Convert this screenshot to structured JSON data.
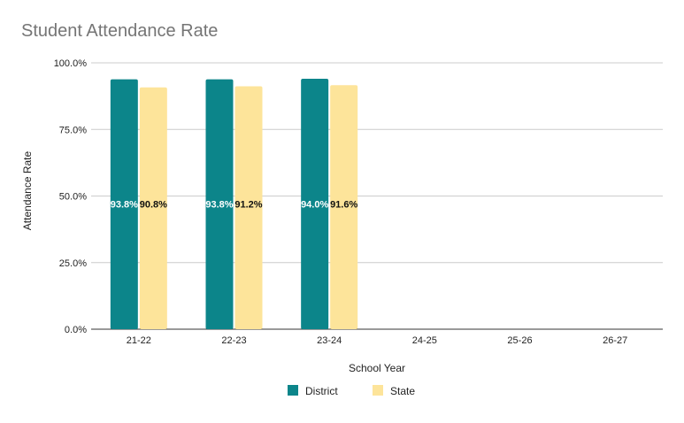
{
  "chart_data": {
    "type": "bar",
    "title": "Student Attendance Rate",
    "xlabel": "School Year",
    "ylabel": "Attendance Rate",
    "categories": [
      "21-22",
      "22-23",
      "23-24",
      "24-25",
      "25-26",
      "26-27"
    ],
    "series": [
      {
        "name": "District",
        "color": "#0c858a",
        "values": [
          93.8,
          93.8,
          94.0,
          null,
          null,
          null
        ],
        "labels": [
          "93.8%",
          "93.8%",
          "94.0%",
          null,
          null,
          null
        ]
      },
      {
        "name": "State",
        "color": "#fde49a",
        "values": [
          90.8,
          91.2,
          91.6,
          null,
          null,
          null
        ],
        "labels": [
          "90.8%",
          "91.2%",
          "91.6%",
          null,
          null,
          null
        ]
      }
    ],
    "ylim": [
      0,
      100
    ],
    "yticks": [
      0,
      25,
      50,
      75,
      100
    ],
    "ytick_labels": [
      "0.0%",
      "25.0%",
      "50.0%",
      "75.0%",
      "100.0%"
    ],
    "grid": true,
    "legend_position": "bottom"
  }
}
